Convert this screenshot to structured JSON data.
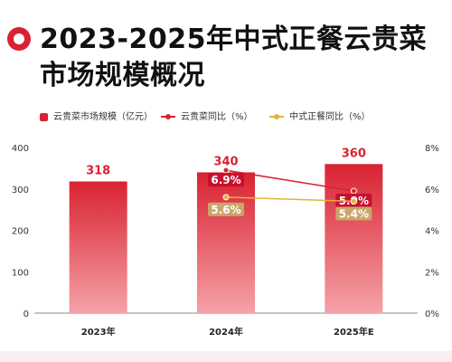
{
  "title": "2023-2025年中式正餐云贵菜市场规模概况",
  "colors": {
    "bar": "#d92231",
    "bar_light": "#f5a2a8",
    "line_yungui": "#d92231",
    "line_zhengcan": "#e3b23c",
    "label_yungui_bg": "#c8102e",
    "label_zhengcan_bg": "#c9a66b"
  },
  "chart_data": {
    "type": "bar",
    "categories": [
      "2023年",
      "2024年",
      "2025年E"
    ],
    "bar_series": {
      "name": "云贵菜市场规模（亿元）",
      "values": [
        318,
        340,
        360
      ],
      "labels": [
        "318",
        "340",
        "360"
      ]
    },
    "line_series": [
      {
        "name": "云贵菜同比（%）",
        "values": [
          null,
          6.9,
          5.9
        ],
        "labels": [
          "",
          "6.9%",
          "5.9%"
        ]
      },
      {
        "name": "中式正餐同比（%）",
        "values": [
          null,
          5.6,
          5.4
        ],
        "labels": [
          "",
          "5.6%",
          "5.4%"
        ]
      }
    ],
    "left_axis": {
      "min": 0,
      "max": 400,
      "ticks": [
        "0",
        "100",
        "200",
        "300",
        "400"
      ]
    },
    "right_axis": {
      "min": 0,
      "max": 8,
      "ticks": [
        "0%",
        "2%",
        "4%",
        "6%",
        "8%"
      ]
    },
    "legend_position": "top-left",
    "grid": false
  }
}
